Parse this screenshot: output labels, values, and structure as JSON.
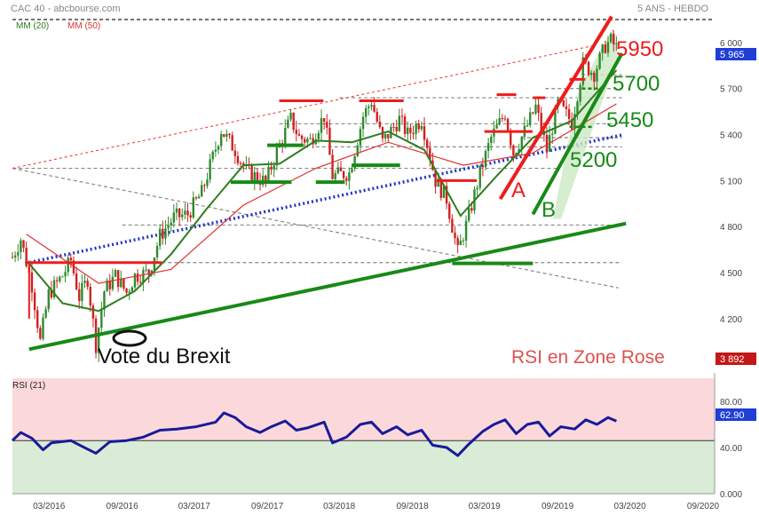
{
  "header": {
    "title": "CAC 40 - abcbourse.com",
    "period": "5 ANS - HEBDO"
  },
  "legend": {
    "mm20": "MM (20)",
    "mm50": "MM (50)"
  },
  "colors": {
    "price_up": "#2e8b2e",
    "price_down": "#d02020",
    "mm20": "#2e7d1e",
    "mm50": "#e03030",
    "rsi_line": "#1a1a9a",
    "rsi_high_zone": "#fbd9db",
    "rsi_low_zone": "#d9ecd6",
    "support_green": "#178a17",
    "channel_red": "#ee1c1c",
    "blue_trend": "#1f35c8",
    "last_badge": "#1f3fd6",
    "low_badge": "#c41818"
  },
  "chart_data": [
    {
      "type": "line",
      "panel": "price",
      "title": "CAC 40 - abcbourse.com",
      "scale": "linear",
      "ylim": [
        3892,
        6150
      ],
      "yticks": [
        4200,
        4500,
        4800,
        5100,
        5400,
        5700,
        6000
      ],
      "ytick_labels": [
        "4 200",
        "4 500",
        "4 800",
        "5 100",
        "5 400",
        "5 700",
        "6 000"
      ],
      "x_start": "2015-11-30",
      "x_end": "2020-09-30",
      "xticks": [
        "2016-03-01",
        "2016-09-01",
        "2017-03-01",
        "2017-09-01",
        "2018-03-01",
        "2018-09-01",
        "2019-03-01",
        "2019-09-01",
        "2020-03-01",
        "2020-09-01"
      ],
      "xtick_labels": [
        "03/2016",
        "09/2016",
        "03/2017",
        "09/2017",
        "03/2018",
        "09/2018",
        "03/2019",
        "09/2019",
        "03/2020",
        "09/2020"
      ],
      "price_path": [
        [
          "2015-11-30",
          4600
        ],
        [
          "2015-12-21",
          4720
        ],
        [
          "2016-01-18",
          4420
        ],
        [
          "2016-02-08",
          4050
        ],
        [
          "2016-02-29",
          4360
        ],
        [
          "2016-04-04",
          4480
        ],
        [
          "2016-04-25",
          4580
        ],
        [
          "2016-05-16",
          4340
        ],
        [
          "2016-06-06",
          4460
        ],
        [
          "2016-06-27",
          4030
        ],
        [
          "2016-07-18",
          4380
        ],
        [
          "2016-08-15",
          4480
        ],
        [
          "2016-09-12",
          4370
        ],
        [
          "2016-10-03",
          4480
        ],
        [
          "2016-11-07",
          4500
        ],
        [
          "2016-12-05",
          4740
        ],
        [
          "2017-01-09",
          4860
        ],
        [
          "2017-02-13",
          4880
        ],
        [
          "2017-03-20",
          5020
        ],
        [
          "2017-04-24",
          5310
        ],
        [
          "2017-05-08",
          5430
        ],
        [
          "2017-06-12",
          5300
        ],
        [
          "2017-07-10",
          5160
        ],
        [
          "2017-08-07",
          5120
        ],
        [
          "2017-08-28",
          5090
        ],
        [
          "2017-09-25",
          5290
        ],
        [
          "2017-10-30",
          5500
        ],
        [
          "2017-11-20",
          5380
        ],
        [
          "2017-12-18",
          5360
        ],
        [
          "2018-01-22",
          5520
        ],
        [
          "2018-02-12",
          5130
        ],
        [
          "2018-03-26",
          5150
        ],
        [
          "2018-04-30",
          5520
        ],
        [
          "2018-05-21",
          5620
        ],
        [
          "2018-06-18",
          5350
        ],
        [
          "2018-07-30",
          5500
        ],
        [
          "2018-08-20",
          5400
        ],
        [
          "2018-09-24",
          5500
        ],
        [
          "2018-10-29",
          5100
        ],
        [
          "2018-11-26",
          4980
        ],
        [
          "2018-12-24",
          4630
        ],
        [
          "2019-01-21",
          4870
        ],
        [
          "2019-02-18",
          5150
        ],
        [
          "2019-03-18",
          5380
        ],
        [
          "2019-04-22",
          5540
        ],
        [
          "2019-05-13",
          5280
        ],
        [
          "2019-06-10",
          5420
        ],
        [
          "2019-07-08",
          5580
        ],
        [
          "2019-08-05",
          5300
        ],
        [
          "2019-09-02",
          5600
        ],
        [
          "2019-10-07",
          5480
        ],
        [
          "2019-11-04",
          5860
        ],
        [
          "2019-12-02",
          5800
        ],
        [
          "2019-12-30",
          5980
        ],
        [
          "2020-01-13",
          6010
        ],
        [
          "2020-01-27",
          5965
        ]
      ],
      "series": [
        {
          "name": "MM (20)",
          "points": [
            [
              "2016-01-04",
              4580
            ],
            [
              "2016-04-04",
              4300
            ],
            [
              "2016-07-04",
              4250
            ],
            [
              "2016-10-03",
              4380
            ],
            [
              "2017-01-02",
              4620
            ],
            [
              "2017-04-03",
              4920
            ],
            [
              "2017-07-03",
              5200
            ],
            [
              "2017-10-02",
              5210
            ],
            [
              "2018-01-01",
              5360
            ],
            [
              "2018-04-02",
              5350
            ],
            [
              "2018-07-02",
              5420
            ],
            [
              "2018-10-01",
              5300
            ],
            [
              "2018-12-31",
              4870
            ],
            [
              "2019-04-01",
              5130
            ],
            [
              "2019-07-01",
              5380
            ],
            [
              "2019-10-07",
              5490
            ],
            [
              "2020-01-27",
              5820
            ]
          ]
        },
        {
          "name": "MM (50)",
          "points": [
            [
              "2016-01-04",
              4750
            ],
            [
              "2016-07-04",
              4430
            ],
            [
              "2017-01-02",
              4520
            ],
            [
              "2017-07-03",
              4940
            ],
            [
              "2018-01-01",
              5180
            ],
            [
              "2018-07-02",
              5350
            ],
            [
              "2019-01-07",
              5200
            ],
            [
              "2019-07-01",
              5280
            ],
            [
              "2020-01-27",
              5600
            ]
          ]
        }
      ],
      "horizontal_levels": [
        {
          "label": "5950",
          "value": 5950,
          "color": "#ee1c1c"
        },
        {
          "label": "5700",
          "value": 5700,
          "color": "#178a17"
        },
        {
          "label": "5450",
          "value": 5450,
          "color": "#178a17"
        },
        {
          "label": "5200",
          "value": 5200,
          "color": "#178a17"
        }
      ],
      "channel_labels": [
        "A",
        "B"
      ],
      "annotations": [
        "Vote du Brexit",
        "RSI en Zone Rose"
      ],
      "last_value": "5 965",
      "low_value": "3 892"
    },
    {
      "type": "line",
      "panel": "rsi",
      "title": "RSI (21)",
      "ylim": [
        0,
        100
      ],
      "yticks": [
        0,
        40,
        80
      ],
      "ytick_labels": [
        "0.000",
        "40.00",
        "80.00"
      ],
      "zones": {
        "upper": [
          46,
          100
        ],
        "lower": [
          0,
          46
        ]
      },
      "last_value": "62.90",
      "series": [
        {
          "name": "RSI (21)",
          "points": [
            [
              "2015-11-30",
              46
            ],
            [
              "2015-12-21",
              53
            ],
            [
              "2016-01-18",
              48
            ],
            [
              "2016-02-15",
              38
            ],
            [
              "2016-03-07",
              44
            ],
            [
              "2016-04-25",
              46
            ],
            [
              "2016-05-23",
              41
            ],
            [
              "2016-06-27",
              35
            ],
            [
              "2016-08-01",
              45
            ],
            [
              "2016-09-12",
              46
            ],
            [
              "2016-10-24",
              49
            ],
            [
              "2016-12-05",
              55
            ],
            [
              "2017-01-16",
              56
            ],
            [
              "2017-03-06",
              58
            ],
            [
              "2017-04-24",
              62
            ],
            [
              "2017-05-15",
              70
            ],
            [
              "2017-06-12",
              66
            ],
            [
              "2017-07-10",
              58
            ],
            [
              "2017-08-14",
              53
            ],
            [
              "2017-09-11",
              58
            ],
            [
              "2017-10-16",
              63
            ],
            [
              "2017-11-13",
              55
            ],
            [
              "2017-12-11",
              57
            ],
            [
              "2018-01-22",
              62
            ],
            [
              "2018-02-12",
              44
            ],
            [
              "2018-03-19",
              49
            ],
            [
              "2018-04-23",
              60
            ],
            [
              "2018-05-21",
              62
            ],
            [
              "2018-06-18",
              52
            ],
            [
              "2018-07-23",
              58
            ],
            [
              "2018-08-20",
              51
            ],
            [
              "2018-09-24",
              55
            ],
            [
              "2018-10-22",
              42
            ],
            [
              "2018-11-26",
              40
            ],
            [
              "2018-12-24",
              33
            ],
            [
              "2019-01-21",
              43
            ],
            [
              "2019-02-25",
              54
            ],
            [
              "2019-03-25",
              60
            ],
            [
              "2019-04-22",
              64
            ],
            [
              "2019-05-20",
              52
            ],
            [
              "2019-06-17",
              60
            ],
            [
              "2019-07-15",
              62
            ],
            [
              "2019-08-12",
              50
            ],
            [
              "2019-09-09",
              58
            ],
            [
              "2019-10-14",
              56
            ],
            [
              "2019-11-11",
              64
            ],
            [
              "2019-12-09",
              60
            ],
            [
              "2020-01-06",
              66
            ],
            [
              "2020-01-27",
              62.9
            ]
          ]
        }
      ]
    }
  ]
}
